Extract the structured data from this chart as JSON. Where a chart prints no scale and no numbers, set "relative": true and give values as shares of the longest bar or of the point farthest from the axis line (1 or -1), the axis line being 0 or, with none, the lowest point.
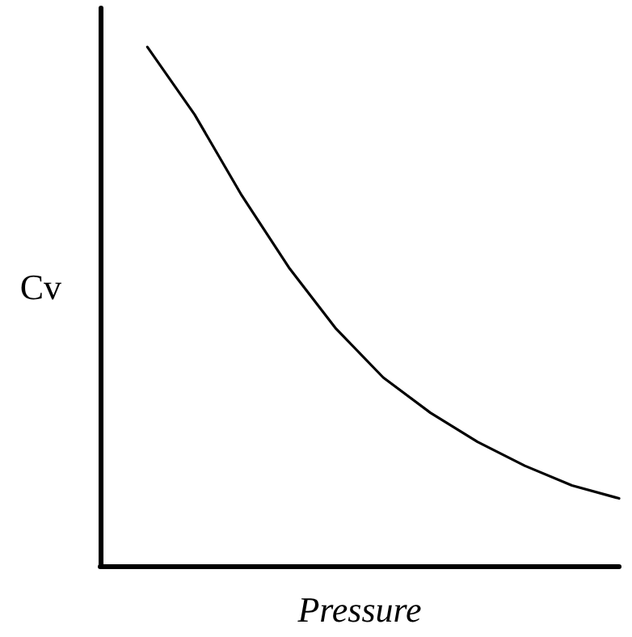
{
  "chart_data": {
    "type": "line",
    "relative": true,
    "xlabel": "Pressure",
    "ylabel": "Cv",
    "grid": false,
    "marker": "none",
    "line_style": "solid",
    "categories": [
      null,
      null,
      null,
      null,
      null,
      null,
      null,
      null,
      null,
      null,
      null,
      null
    ],
    "series": [
      {
        "color": "#000000",
        "values": [
          null,
          1,
          0.87,
          0.714,
          0.575,
          0.457,
          0.363,
          0.295,
          0.239,
          0.193,
          0.155,
          0.13
        ]
      }
    ]
  }
}
